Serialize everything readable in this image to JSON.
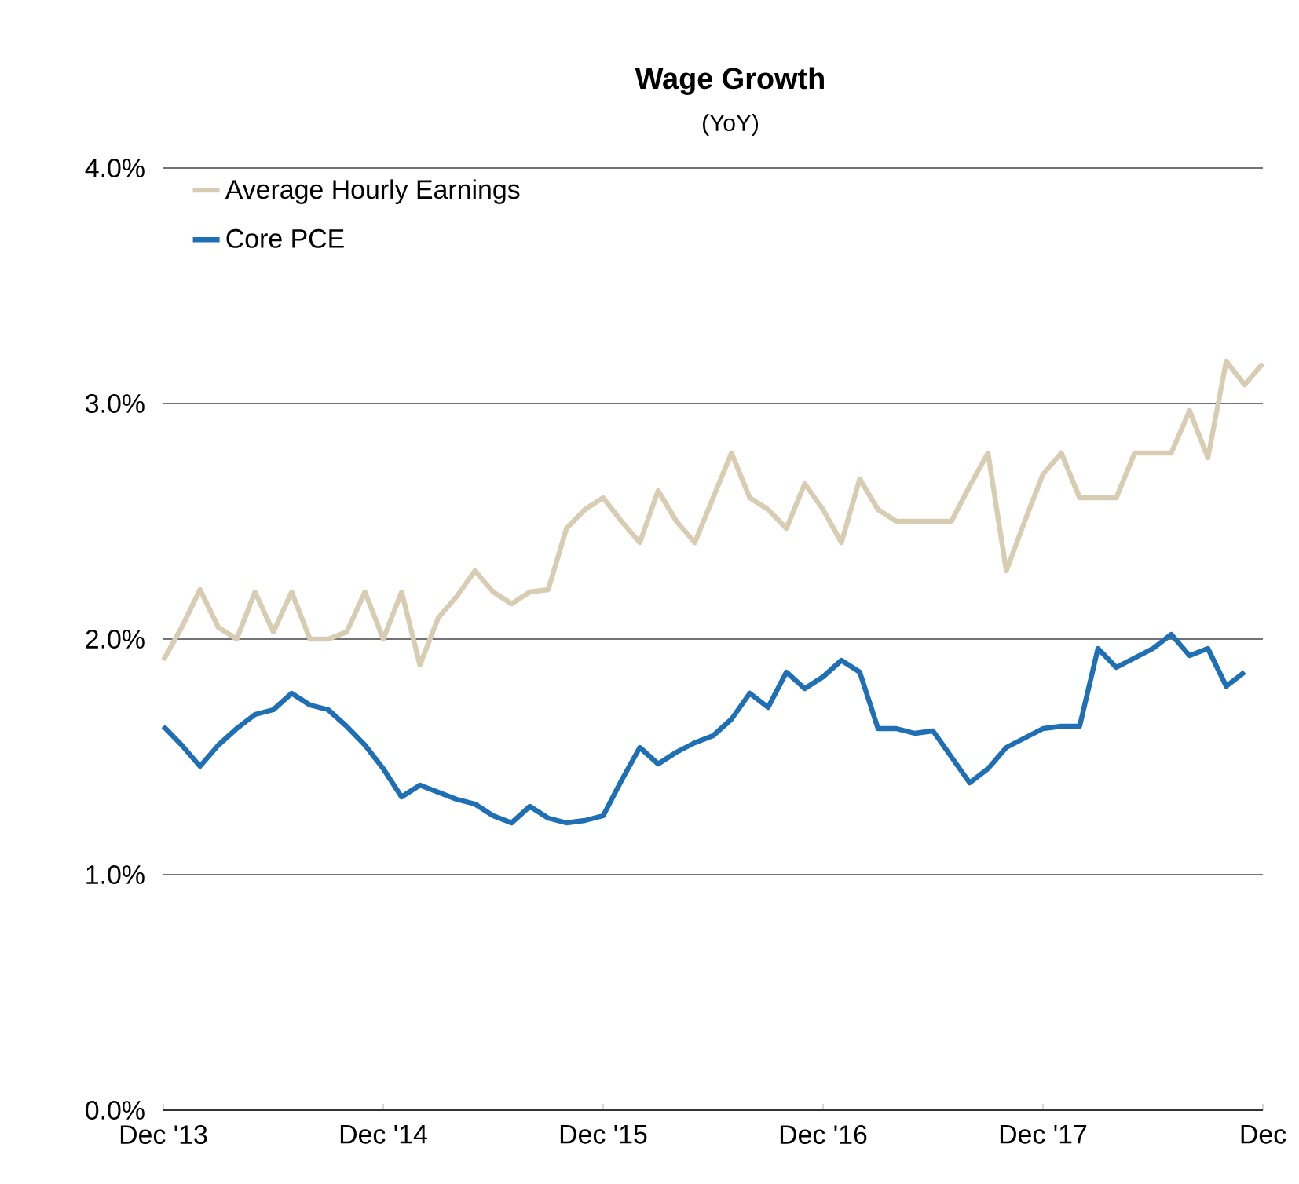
{
  "chart_data": {
    "type": "line",
    "title": "Wage Growth",
    "subtitle": "(YoY)",
    "x": [
      "2013-12",
      "2014-01",
      "2014-02",
      "2014-03",
      "2014-04",
      "2014-05",
      "2014-06",
      "2014-07",
      "2014-08",
      "2014-09",
      "2014-10",
      "2014-11",
      "2014-12",
      "2015-01",
      "2015-02",
      "2015-03",
      "2015-04",
      "2015-05",
      "2015-06",
      "2015-07",
      "2015-08",
      "2015-09",
      "2015-10",
      "2015-11",
      "2015-12",
      "2016-01",
      "2016-02",
      "2016-03",
      "2016-04",
      "2016-05",
      "2016-06",
      "2016-07",
      "2016-08",
      "2016-09",
      "2016-10",
      "2016-11",
      "2016-12",
      "2017-01",
      "2017-02",
      "2017-03",
      "2017-04",
      "2017-05",
      "2017-06",
      "2017-07",
      "2017-08",
      "2017-09",
      "2017-10",
      "2017-11",
      "2017-12",
      "2018-01",
      "2018-02",
      "2018-03",
      "2018-04",
      "2018-05",
      "2018-06",
      "2018-07",
      "2018-08",
      "2018-09",
      "2018-10",
      "2018-11",
      "2018-12"
    ],
    "series": [
      {
        "name": "Average Hourly Earnings",
        "color": "#d8cdb2",
        "values": [
          1.91,
          2.05,
          2.21,
          2.05,
          2.0,
          2.2,
          2.03,
          2.2,
          2.0,
          2.0,
          2.03,
          2.2,
          2.0,
          2.2,
          1.89,
          2.09,
          2.18,
          2.29,
          2.2,
          2.15,
          2.2,
          2.21,
          2.47,
          2.55,
          2.6,
          2.5,
          2.41,
          2.63,
          2.5,
          2.41,
          2.6,
          2.79,
          2.6,
          2.55,
          2.47,
          2.66,
          2.55,
          2.41,
          2.68,
          2.55,
          2.5,
          2.5,
          2.5,
          2.5,
          2.65,
          2.79,
          2.29,
          2.5,
          2.7,
          2.79,
          2.6,
          2.6,
          2.6,
          2.79,
          2.79,
          2.79,
          2.97,
          2.77,
          3.18,
          3.08,
          3.17
        ]
      },
      {
        "name": "Core PCE",
        "color": "#1f6fb4",
        "values": [
          1.63,
          1.55,
          1.46,
          1.55,
          1.62,
          1.68,
          1.7,
          1.77,
          1.72,
          1.7,
          1.63,
          1.55,
          1.45,
          1.33,
          1.38,
          1.35,
          1.32,
          1.3,
          1.25,
          1.22,
          1.29,
          1.24,
          1.22,
          1.23,
          1.25,
          1.4,
          1.54,
          1.47,
          1.52,
          1.56,
          1.59,
          1.66,
          1.77,
          1.71,
          1.86,
          1.79,
          1.84,
          1.91,
          1.86,
          1.62,
          1.62,
          1.6,
          1.61,
          1.5,
          1.39,
          1.45,
          1.54,
          1.58,
          1.62,
          1.63,
          1.63,
          1.96,
          1.88,
          1.92,
          1.96,
          2.02,
          1.93,
          1.96,
          1.8,
          1.86,
          null
        ]
      }
    ],
    "xlim": [
      "2013-12",
      "2018-12"
    ],
    "xticks": [
      {
        "value": "2013-12",
        "label": "Dec '13"
      },
      {
        "value": "2014-12",
        "label": "Dec '14"
      },
      {
        "value": "2015-12",
        "label": "Dec '15"
      },
      {
        "value": "2016-12",
        "label": "Dec '16"
      },
      {
        "value": "2017-12",
        "label": "Dec '17"
      },
      {
        "value": "2018-12",
        "label": "Dec"
      }
    ],
    "ylim": [
      0,
      4
    ],
    "yticks": [
      {
        "value": 0,
        "label": "0.0%"
      },
      {
        "value": 1,
        "label": "1.0%"
      },
      {
        "value": 2,
        "label": "2.0%"
      },
      {
        "value": 3,
        "label": "3.0%"
      },
      {
        "value": 4,
        "label": "4.0%"
      }
    ],
    "grid": "y",
    "legend": "top left",
    "marker": "none",
    "line_style": "solid"
  }
}
